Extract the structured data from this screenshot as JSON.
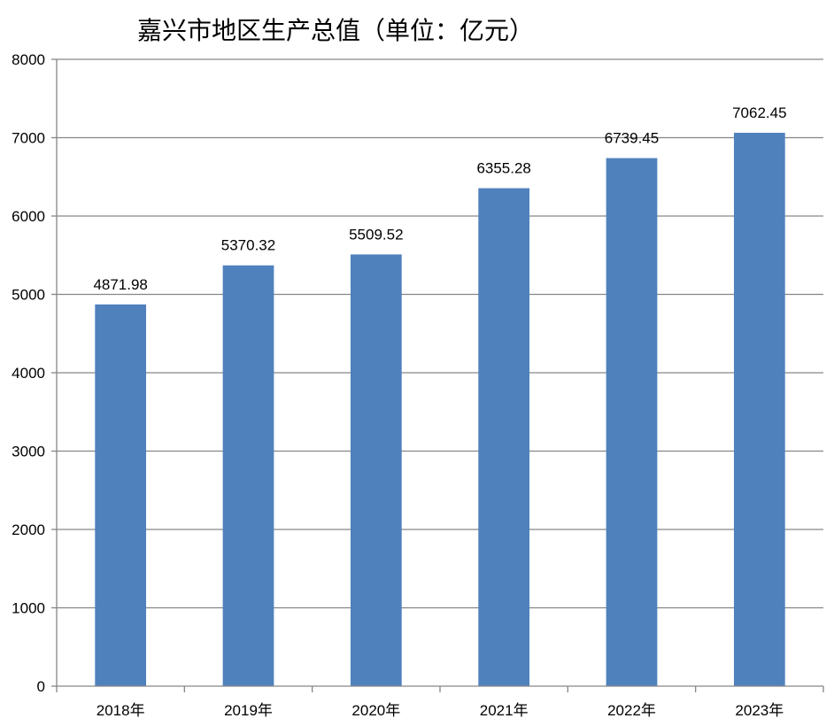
{
  "chart_data": {
    "type": "bar",
    "title": "嘉兴市地区生产总值（单位：亿元）",
    "categories": [
      "2018年",
      "2019年",
      "2020年",
      "2021年",
      "2022年",
      "2023年"
    ],
    "values": [
      4871.98,
      5370.32,
      5509.52,
      6355.28,
      6739.45,
      7062.45
    ],
    "data_labels": [
      "4871.98",
      "5370.32",
      "5509.52",
      "6355.28",
      "6739.45",
      "7062.45"
    ],
    "y_ticks": [
      "0",
      "1000",
      "2000",
      "3000",
      "4000",
      "5000",
      "6000",
      "7000",
      "8000"
    ],
    "ylim": [
      0,
      8000
    ],
    "xlabel": "",
    "ylabel": "",
    "grid": true,
    "legend": "none",
    "bar_color": "#4F81BD",
    "grid_color": "#868686",
    "axis_color": "#868686"
  }
}
